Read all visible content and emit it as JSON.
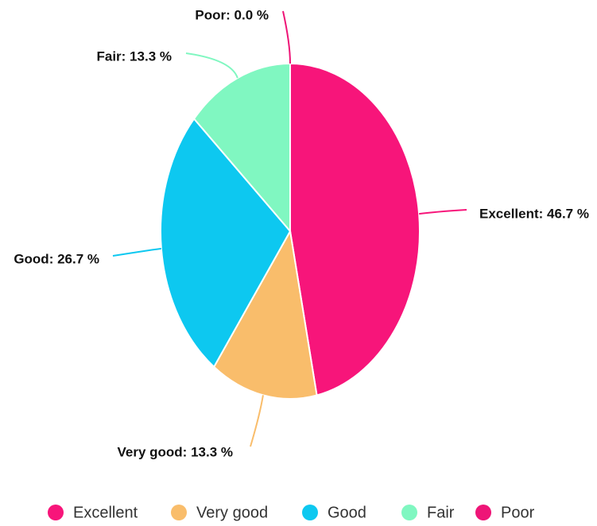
{
  "chart_data": {
    "type": "pie",
    "categories": [
      "Excellent",
      "Very good",
      "Good",
      "Fair",
      "Poor"
    ],
    "values": [
      46.7,
      13.3,
      26.7,
      13.3,
      0.0
    ],
    "value_labels": [
      "Excellent: 46.7 %",
      "Very good: 13.3 %",
      "Good: 26.7 %",
      "Fair: 13.3 %",
      "Poor: 0.0 %"
    ],
    "colors": [
      "#f7157a",
      "#f9bd6b",
      "#0dc8f0",
      "#80f7c1",
      "#ee1577"
    ],
    "legend": "bottom"
  }
}
